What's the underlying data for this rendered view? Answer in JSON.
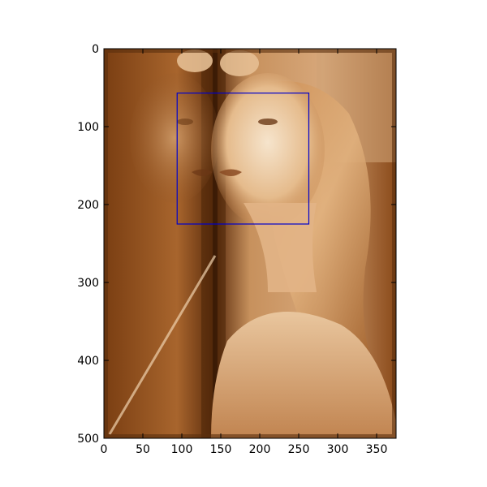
{
  "figure": {
    "image": {
      "subject": "sepia portrait photograph",
      "tint": "#b5733a",
      "highlight": "#f3e1c8",
      "shadow": "#4a2408"
    },
    "bounding_box": {
      "x_min": 94,
      "y_min": 57,
      "x_max": 263,
      "y_max": 225,
      "color": "#0000cc"
    },
    "x_axis": {
      "range": [
        0,
        375
      ],
      "ticks": [
        "0",
        "50",
        "100",
        "150",
        "200",
        "250",
        "300",
        "350"
      ],
      "tick_values": [
        0,
        50,
        100,
        150,
        200,
        250,
        300,
        350
      ]
    },
    "y_axis": {
      "range": [
        0,
        500
      ],
      "inverted": true,
      "ticks": [
        "0",
        "100",
        "200",
        "300",
        "400",
        "500"
      ],
      "tick_values": [
        0,
        100,
        200,
        300,
        400,
        500
      ]
    }
  }
}
